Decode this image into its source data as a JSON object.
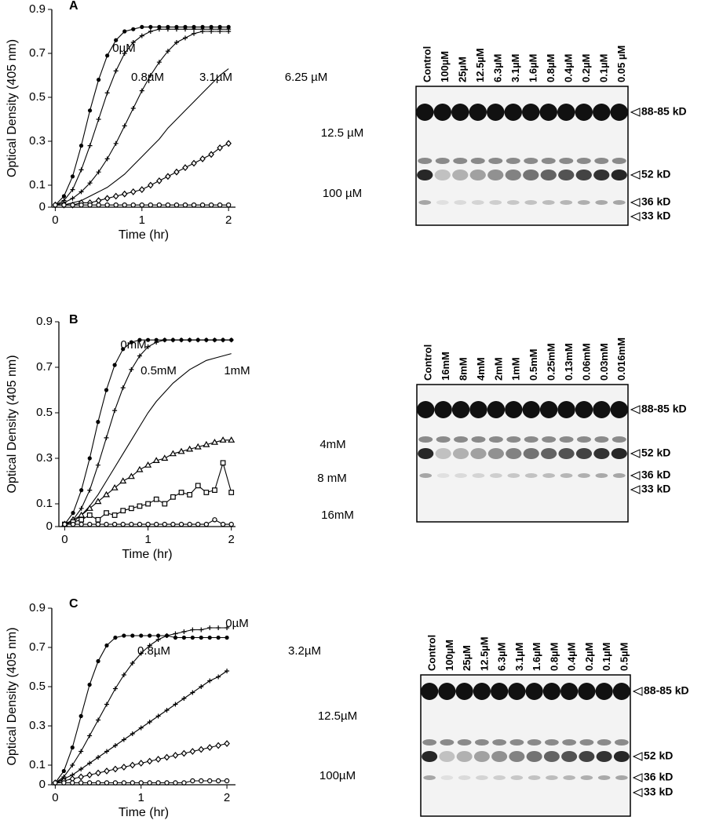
{
  "chart_data": [
    {
      "type": "line",
      "label": "A",
      "xlabel": "Time (hr)",
      "ylabel": "Optical Density (405 nm)",
      "x": [
        0,
        0.1,
        0.2,
        0.3,
        0.4,
        0.5,
        0.6,
        0.7,
        0.8,
        0.9,
        1,
        1.1,
        1.2,
        1.3,
        1.4,
        1.5,
        1.6,
        1.7,
        1.8,
        1.9,
        2
      ],
      "xlim": [
        -0.04,
        2.08
      ],
      "xticks": [
        0,
        1,
        2
      ],
      "ylim": [
        0,
        0.9
      ],
      "yticks": [
        0,
        0.1,
        0.3,
        0.5,
        0.7,
        0.9
      ],
      "series": [
        {
          "name": "0µM",
          "color": "#000000",
          "marker": "dot",
          "values": [
            0.01,
            0.05,
            0.14,
            0.28,
            0.44,
            0.58,
            0.69,
            0.76,
            0.8,
            0.81,
            0.82,
            0.82,
            0.82,
            0.82,
            0.82,
            0.82,
            0.82,
            0.82,
            0.82,
            0.82,
            0.82
          ]
        },
        {
          "name": "0.8µM",
          "color": "#000000",
          "marker": "plus",
          "values": [
            0.01,
            0.03,
            0.08,
            0.17,
            0.28,
            0.4,
            0.52,
            0.62,
            0.7,
            0.75,
            0.78,
            0.8,
            0.81,
            0.81,
            0.81,
            0.81,
            0.81,
            0.81,
            0.81,
            0.81,
            0.81
          ]
        },
        {
          "name": "3.1µM",
          "color": "#000000",
          "marker": "plus",
          "values": [
            0.01,
            0.02,
            0.04,
            0.07,
            0.11,
            0.16,
            0.22,
            0.29,
            0.37,
            0.45,
            0.53,
            0.6,
            0.66,
            0.71,
            0.75,
            0.77,
            0.79,
            0.8,
            0.8,
            0.8,
            0.8
          ]
        },
        {
          "name": "6.25 µM",
          "color": "#000000",
          "marker": "none",
          "values": [
            0.01,
            0.01,
            0.02,
            0.03,
            0.05,
            0.07,
            0.09,
            0.12,
            0.15,
            0.19,
            0.23,
            0.27,
            0.31,
            0.36,
            0.4,
            0.44,
            0.48,
            0.52,
            0.56,
            0.6,
            0.63
          ]
        },
        {
          "name": "12.5 µM",
          "color": "#000000",
          "marker": "diamond",
          "values": [
            0.01,
            0.01,
            0.01,
            0.02,
            0.02,
            0.03,
            0.04,
            0.05,
            0.06,
            0.07,
            0.08,
            0.1,
            0.12,
            0.14,
            0.16,
            0.18,
            0.2,
            0.22,
            0.24,
            0.27,
            0.29
          ]
        },
        {
          "name": "100 µM",
          "color": "#000000",
          "marker": "ring",
          "values": [
            0.01,
            0.01,
            0.01,
            0.01,
            0.01,
            0.01,
            0.01,
            0.01,
            0.01,
            0.01,
            0.01,
            0.01,
            0.01,
            0.01,
            0.01,
            0.01,
            0.01,
            0.01,
            0.01,
            0.01,
            0.01
          ]
        }
      ]
    },
    {
      "type": "line",
      "label": "B",
      "xlabel": "Time (hr)",
      "ylabel": "Optical Density (405 nm)",
      "x": [
        0,
        0.1,
        0.2,
        0.3,
        0.4,
        0.5,
        0.6,
        0.7,
        0.8,
        0.9,
        1,
        1.1,
        1.2,
        1.3,
        1.4,
        1.5,
        1.6,
        1.7,
        1.8,
        1.9,
        2
      ],
      "xlim": [
        -0.07,
        2.05
      ],
      "xticks": [
        0,
        1,
        2
      ],
      "ylim": [
        0,
        0.9
      ],
      "yticks": [
        0,
        0.1,
        0.3,
        0.5,
        0.7,
        0.9
      ],
      "series": [
        {
          "name": "0mM",
          "color": "#000000",
          "marker": "dot",
          "values": [
            0.01,
            0.06,
            0.16,
            0.3,
            0.46,
            0.6,
            0.71,
            0.78,
            0.81,
            0.82,
            0.82,
            0.82,
            0.82,
            0.82,
            0.82,
            0.82,
            0.82,
            0.82,
            0.82,
            0.82,
            0.82
          ]
        },
        {
          "name": "0.5mM",
          "color": "#000000",
          "marker": "plus",
          "values": [
            0.01,
            0.03,
            0.08,
            0.16,
            0.27,
            0.39,
            0.51,
            0.61,
            0.69,
            0.75,
            0.79,
            0.81,
            0.82,
            0.82,
            0.82,
            0.82,
            0.82,
            0.82,
            0.82,
            0.82,
            0.82
          ]
        },
        {
          "name": "1mM",
          "color": "#000000",
          "marker": "none",
          "values": [
            0.01,
            0.02,
            0.05,
            0.09,
            0.14,
            0.2,
            0.26,
            0.32,
            0.38,
            0.44,
            0.5,
            0.55,
            0.59,
            0.63,
            0.66,
            0.69,
            0.71,
            0.73,
            0.74,
            0.75,
            0.76
          ]
        },
        {
          "name": "4mM",
          "color": "#000000",
          "marker": "triangle",
          "values": [
            0.01,
            0.03,
            0.05,
            0.08,
            0.11,
            0.14,
            0.17,
            0.2,
            0.22,
            0.25,
            0.27,
            0.29,
            0.3,
            0.32,
            0.33,
            0.34,
            0.35,
            0.36,
            0.37,
            0.38,
            0.38
          ]
        },
        {
          "name": "8 mM",
          "color": "#000000",
          "marker": "square",
          "values": [
            0.01,
            0.02,
            0.03,
            0.05,
            0.03,
            0.06,
            0.05,
            0.07,
            0.08,
            0.09,
            0.1,
            0.12,
            0.1,
            0.13,
            0.15,
            0.14,
            0.18,
            0.15,
            0.16,
            0.28,
            0.15
          ]
        },
        {
          "name": "16mM",
          "color": "#000000",
          "marker": "ring",
          "values": [
            0.01,
            0.01,
            0.01,
            0.01,
            0.01,
            0.01,
            0.01,
            0.01,
            0.01,
            0.01,
            0.01,
            0.01,
            0.01,
            0.01,
            0.01,
            0.01,
            0.01,
            0.01,
            0.03,
            0.01,
            0.01
          ]
        }
      ]
    },
    {
      "type": "line",
      "label": "C",
      "xlabel": "Time (hr)",
      "ylabel": "Optical Density (405 nm)",
      "x": [
        0,
        0.1,
        0.2,
        0.3,
        0.4,
        0.5,
        0.6,
        0.7,
        0.8,
        0.9,
        1,
        1.1,
        1.2,
        1.3,
        1.4,
        1.5,
        1.6,
        1.7,
        1.8,
        1.9,
        2
      ],
      "xlim": [
        -0.04,
        2.1
      ],
      "xticks": [
        0,
        1,
        2
      ],
      "ylim": [
        0,
        0.9
      ],
      "yticks": [
        0,
        0.1,
        0.3,
        0.5,
        0.7,
        0.9
      ],
      "series": [
        {
          "name": "0µM",
          "color": "#000000",
          "marker": "dot",
          "values": [
            0.01,
            0.07,
            0.19,
            0.35,
            0.51,
            0.63,
            0.71,
            0.75,
            0.76,
            0.76,
            0.76,
            0.76,
            0.76,
            0.76,
            0.75,
            0.75,
            0.75,
            0.75,
            0.75,
            0.75,
            0.75
          ]
        },
        {
          "name": "0.8µM",
          "color": "#000000",
          "marker": "plus",
          "values": [
            0.01,
            0.04,
            0.1,
            0.17,
            0.25,
            0.33,
            0.41,
            0.49,
            0.56,
            0.62,
            0.67,
            0.71,
            0.74,
            0.76,
            0.77,
            0.78,
            0.79,
            0.79,
            0.8,
            0.8,
            0.8
          ]
        },
        {
          "name": "3.2µM",
          "color": "#000000",
          "marker": "plus",
          "values": [
            0.01,
            0.03,
            0.05,
            0.08,
            0.11,
            0.14,
            0.17,
            0.2,
            0.23,
            0.26,
            0.29,
            0.32,
            0.35,
            0.38,
            0.41,
            0.44,
            0.47,
            0.5,
            0.53,
            0.55,
            0.58
          ]
        },
        {
          "name": "12.5µM",
          "color": "#000000",
          "marker": "diamond",
          "values": [
            0.01,
            0.02,
            0.03,
            0.04,
            0.05,
            0.06,
            0.07,
            0.08,
            0.09,
            0.1,
            0.11,
            0.12,
            0.13,
            0.14,
            0.15,
            0.16,
            0.17,
            0.18,
            0.19,
            0.2,
            0.21
          ]
        },
        {
          "name": "100µM",
          "color": "#000000",
          "marker": "ring",
          "values": [
            0.01,
            0.01,
            0.01,
            0.01,
            0.01,
            0.01,
            0.01,
            0.01,
            0.01,
            0.01,
            0.01,
            0.01,
            0.01,
            0.01,
            0.01,
            0.01,
            0.02,
            0.02,
            0.02,
            0.02,
            0.02
          ]
        }
      ]
    }
  ],
  "gels": [
    {
      "lanes": [
        "Control",
        "100µM",
        "25µM",
        "12.5µM",
        "6.3µM",
        "3.1µM",
        "1.6µM",
        "0.8µM",
        "0.4µM",
        "0.2µM",
        "0.1µM",
        "0.05 µM"
      ],
      "bands": [
        "88-85 kD",
        "52 kD",
        "36 kD",
        "33 kD"
      ]
    },
    {
      "lanes": [
        "Control",
        "16mM",
        "8mM",
        "4mM",
        "2mM",
        "1mM",
        "0.5mM",
        "0.25mM",
        "0.13mM",
        "0.06mM",
        "0.03mM",
        "0.016mM"
      ],
      "bands": [
        "88-85 kD",
        "52 kD",
        "36 kD",
        "33 kD"
      ]
    },
    {
      "lanes": [
        "Control",
        "100µM",
        "25µM",
        "12.5µM",
        "6.3µM",
        "3.1µM",
        "1.6µM",
        "0.8µM",
        "0.4µM",
        "0.2µM",
        "0.1µM",
        "0.5µM"
      ],
      "bands": [
        "88-85 kD",
        "52 kD",
        "36 kD",
        "33 kD"
      ]
    }
  ]
}
